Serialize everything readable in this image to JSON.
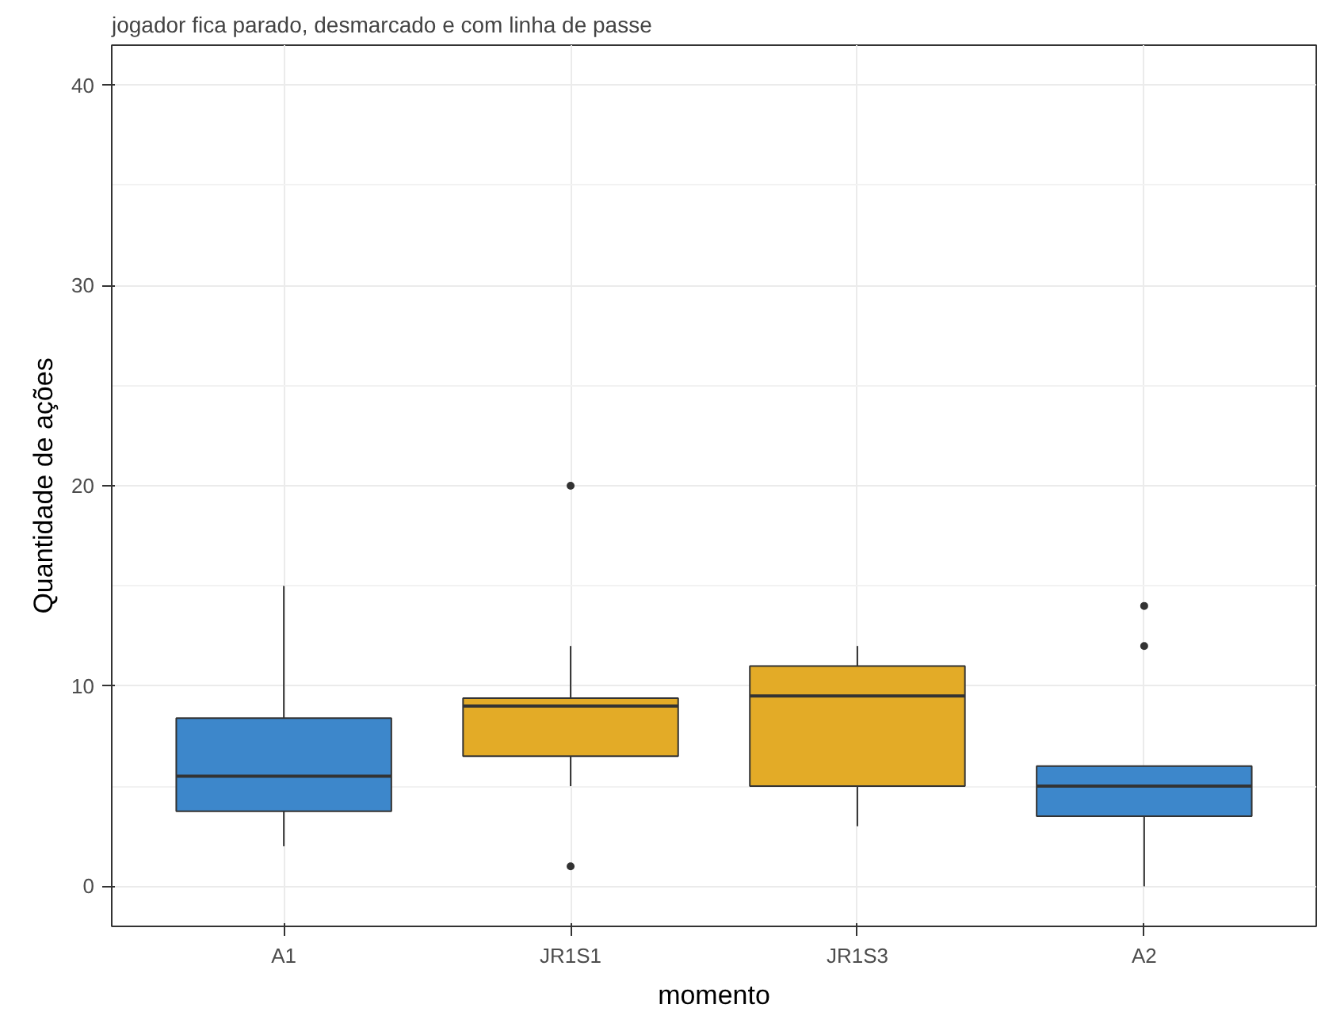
{
  "chart_data": {
    "type": "box",
    "title": "jogador fica parado, desmarcado e com linha de passe",
    "xlabel": "momento",
    "ylabel": "Quantidade de ações",
    "categories": [
      "A1",
      "JR1S1",
      "JR1S3",
      "A2"
    ],
    "colors": [
      "#3d87cb",
      "#e3ab27",
      "#e3ab27",
      "#3d87cb"
    ],
    "boxes": [
      {
        "low": 2,
        "q1": 3.75,
        "median": 5.5,
        "q3": 8.4,
        "high": 15
      },
      {
        "low": 5,
        "q1": 6.5,
        "median": 9,
        "q3": 9.4,
        "high": 12,
        "outliers": [
          20,
          1
        ]
      },
      {
        "low": 3,
        "q1": 5,
        "median": 9.5,
        "q3": 11,
        "high": 12
      },
      {
        "low": 0,
        "q1": 3.5,
        "median": 5,
        "q3": 6,
        "high": 6,
        "outliers": [
          14,
          12
        ]
      }
    ],
    "ylim": [
      -2,
      42
    ],
    "yticks": [
      0,
      10,
      20,
      30,
      40
    ],
    "grid": true
  }
}
